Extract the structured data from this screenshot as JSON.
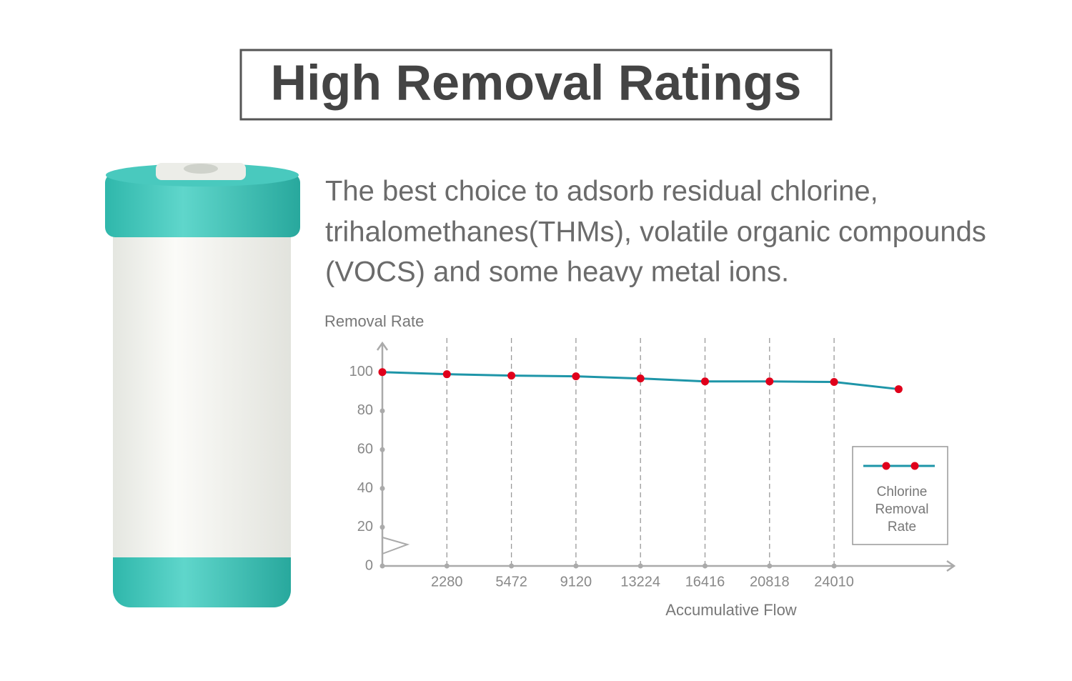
{
  "header": {
    "title": "High Removal Ratings"
  },
  "description": {
    "lines": [
      "The best choice to adsorb residual chlorine,",
      "trihalomethanes(THMs),  volatile organic compounds",
      "(VOCS) and some heavy metal ions."
    ]
  },
  "chart_data": {
    "type": "line",
    "y_label": "Removal Rate",
    "x_label": "Accumulative Flow",
    "categories": [
      null,
      "2280",
      "5472",
      "9120",
      "13224",
      "16416",
      "20818",
      "24010",
      null
    ],
    "series": [
      {
        "name": "Chlorine Removal Rate",
        "color": "#1e95a8",
        "marker_color": "#e0001b",
        "values": [
          100,
          98.9,
          98.2,
          97.8,
          96.7,
          95.2,
          95.2,
          94.9,
          91.2
        ]
      }
    ],
    "ylim": [
      0,
      115
    ],
    "yticks": [
      0,
      20,
      40,
      60,
      80,
      100
    ],
    "grid": "x",
    "legend": "lower right"
  }
}
